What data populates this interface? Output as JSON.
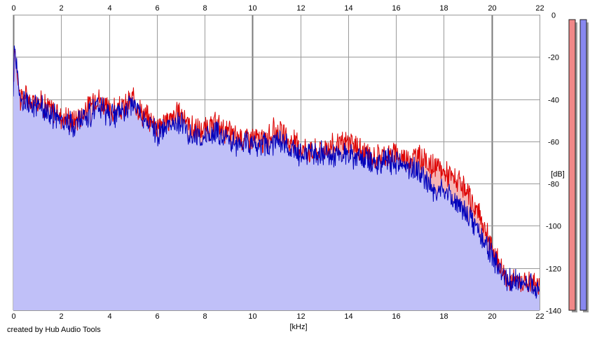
{
  "chart_data": {
    "type": "area",
    "credit": "created by Hub Audio Tools",
    "xlabel": "[kHz]",
    "ylabel": "[dB]",
    "xlim": [
      0,
      22
    ],
    "ylim": [
      -140,
      0
    ],
    "x_ticks": [
      "0",
      "2",
      "4",
      "6",
      "8",
      "10",
      "12",
      "14",
      "16",
      "18",
      "20",
      "22"
    ],
    "y_ticks": [
      "0",
      "-20",
      "-40",
      "-60",
      "-80",
      "-100",
      "-120",
      "-140"
    ],
    "grid": true,
    "colors": {
      "red_line": "#dd0000",
      "blue_line": "#0000bb",
      "red_fill": "#f6b4b4",
      "blue_fill": "#c0c0f8",
      "grid": "#9a9a9a",
      "grid_major": "#7a7a7a"
    },
    "x": [
      0,
      0.05,
      0.15,
      0.3,
      0.5,
      0.7,
      1.0,
      1.5,
      2.0,
      2.5,
      3.0,
      3.5,
      4.0,
      4.5,
      5.0,
      5.5,
      6.0,
      6.5,
      7.0,
      7.5,
      8.0,
      8.5,
      9.0,
      9.5,
      10.0,
      10.5,
      11.0,
      11.5,
      12.0,
      12.5,
      13.0,
      13.5,
      14.0,
      14.5,
      15.0,
      15.5,
      16.0,
      16.5,
      17.0,
      17.5,
      18.0,
      18.5,
      19.0,
      19.5,
      20.0,
      20.5,
      21.0,
      21.5,
      22.0
    ],
    "series": [
      {
        "values": [
          -35,
          -15,
          -25,
          -40,
          -38,
          -42,
          -40,
          -44,
          -48,
          -50,
          -46,
          -38,
          -46,
          -45,
          -40,
          -48,
          -52,
          -50,
          -46,
          -54,
          -55,
          -52,
          -56,
          -58,
          -58,
          -60,
          -54,
          -60,
          -62,
          -65,
          -63,
          -62,
          -60,
          -64,
          -68,
          -66,
          -66,
          -68,
          -67,
          -72,
          -74,
          -78,
          -86,
          -95,
          -110,
          -122,
          -127,
          -126,
          -128
        ]
      },
      {
        "values": [
          -35,
          -15,
          -22,
          -42,
          -40,
          -45,
          -42,
          -47,
          -50,
          -52,
          -49,
          -44,
          -48,
          -46,
          -42,
          -50,
          -56,
          -54,
          -50,
          -58,
          -58,
          -56,
          -60,
          -62,
          -60,
          -62,
          -60,
          -63,
          -66,
          -67,
          -66,
          -66,
          -66,
          -68,
          -70,
          -69,
          -70,
          -72,
          -74,
          -82,
          -84,
          -88,
          -95,
          -103,
          -114,
          -125,
          -127,
          -128,
          -128
        ]
      }
    ]
  }
}
